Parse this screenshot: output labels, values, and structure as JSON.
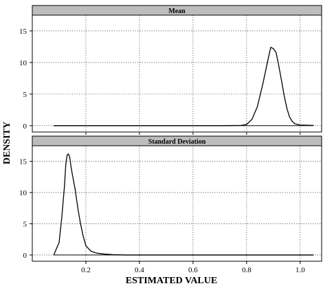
{
  "chart_data": {
    "type": "line",
    "xlabel": "ESTIMATED VALUE",
    "ylabel": "DENSITY",
    "xlim": [
      0.0,
      1.08
    ],
    "x_ticks": [
      0.2,
      0.4,
      0.6,
      0.8,
      1.0
    ],
    "x_tick_labels": [
      "0.2",
      "0.4",
      "0.6",
      "0.8",
      "1.0"
    ],
    "grid": true,
    "panels": [
      {
        "strip_label": "Mean",
        "ylim": [
          -1,
          17.5
        ],
        "y_ticks": [
          0,
          5,
          10,
          15
        ],
        "y_tick_labels": [
          "0",
          "5",
          "10",
          "15"
        ],
        "x": [
          0.08,
          0.7,
          0.78,
          0.8,
          0.82,
          0.84,
          0.86,
          0.87,
          0.88,
          0.89,
          0.9,
          0.91,
          0.92,
          0.93,
          0.94,
          0.95,
          0.96,
          0.97,
          0.98,
          1.0,
          1.05
        ],
        "y": [
          0,
          0,
          0.05,
          0.2,
          1.0,
          3.0,
          6.5,
          8.5,
          10.5,
          12.4,
          12.2,
          11.6,
          9.5,
          7.2,
          4.8,
          2.8,
          1.4,
          0.7,
          0.3,
          0.1,
          0.05
        ]
      },
      {
        "strip_label": "Standard Deviation",
        "ylim": [
          -1,
          17.5
        ],
        "y_ticks": [
          0,
          5,
          10,
          15
        ],
        "y_tick_labels": [
          "0",
          "5",
          "10",
          "15"
        ],
        "x": [
          0.08,
          0.1,
          0.11,
          0.12,
          0.125,
          0.13,
          0.135,
          0.14,
          0.145,
          0.15,
          0.16,
          0.17,
          0.18,
          0.19,
          0.2,
          0.21,
          0.22,
          0.24,
          0.27,
          0.3,
          0.35,
          1.05
        ],
        "y": [
          0,
          2.0,
          6.0,
          11.0,
          14.5,
          16.0,
          16.2,
          15.6,
          14.0,
          12.8,
          10.5,
          7.5,
          5.0,
          3.0,
          1.5,
          1.0,
          0.6,
          0.3,
          0.15,
          0.05,
          0.0,
          0.0
        ]
      }
    ]
  }
}
